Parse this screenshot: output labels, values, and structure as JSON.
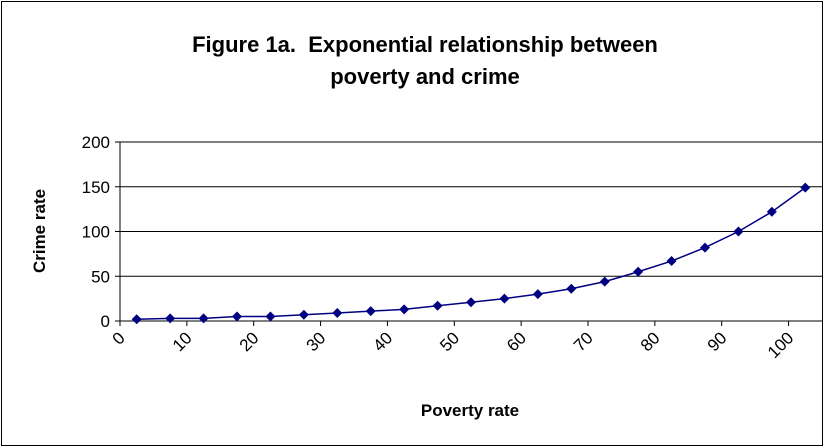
{
  "chart_data": {
    "type": "line",
    "title": [
      "Figure 1a.  Exponential relationship between",
      "poverty and crime"
    ],
    "x_label": "Poverty rate",
    "y_label": "Crime rate",
    "series": [
      {
        "name": "Crime rate",
        "color": "#000080",
        "x": [
          2.5,
          7.5,
          12.5,
          17.5,
          22.5,
          27.5,
          32.5,
          37.5,
          42.5,
          47.5,
          52.5,
          57.5,
          62.5,
          67.5,
          72.5,
          77.5,
          82.5,
          87.5,
          92.5,
          97.5,
          102.5
        ],
        "values": [
          2,
          3,
          3,
          5,
          5,
          7,
          9,
          11,
          13,
          17,
          21,
          25,
          30,
          36,
          44,
          55,
          67,
          82,
          100,
          122,
          149
        ]
      }
    ],
    "xlim": [
      0,
      105
    ],
    "xticks": [
      0,
      10,
      20,
      30,
      40,
      50,
      60,
      70,
      80,
      90,
      100
    ],
    "ylim": [
      0,
      200
    ],
    "yticks": [
      0,
      50,
      100,
      150,
      200
    ],
    "grid": true
  }
}
